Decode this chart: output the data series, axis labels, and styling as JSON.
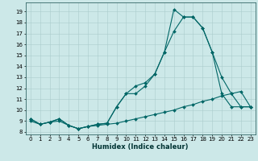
{
  "title": "",
  "xlabel": "Humidex (Indice chaleur)",
  "background_color": "#cce8e8",
  "grid_color": "#aacccc",
  "line_color": "#006666",
  "xlim": [
    -0.5,
    23.5
  ],
  "ylim": [
    7.8,
    19.8
  ],
  "yticks": [
    8,
    9,
    10,
    11,
    12,
    13,
    14,
    15,
    16,
    17,
    18,
    19
  ],
  "xticks": [
    0,
    1,
    2,
    3,
    4,
    5,
    6,
    7,
    8,
    9,
    10,
    11,
    12,
    13,
    14,
    15,
    16,
    17,
    18,
    19,
    20,
    21,
    22,
    23
  ],
  "series": [
    {
      "x": [
        0,
        1,
        2,
        3,
        4,
        5,
        6,
        7,
        8,
        9,
        10,
        11,
        12,
        13,
        14,
        15,
        16,
        17,
        18,
        19,
        20,
        21,
        22,
        23
      ],
      "y": [
        9.2,
        8.7,
        8.9,
        9.2,
        8.6,
        8.3,
        8.5,
        8.7,
        8.8,
        10.3,
        11.5,
        12.2,
        12.5,
        13.3,
        15.3,
        19.2,
        18.5,
        18.5,
        17.5,
        15.3,
        13.0,
        11.5,
        10.3,
        10.3
      ],
      "marker": "D",
      "markersize": 2.0,
      "linewidth": 0.8
    },
    {
      "x": [
        0,
        1,
        2,
        3,
        4,
        5,
        6,
        7,
        8,
        9,
        10,
        11,
        12,
        13,
        14,
        15,
        16,
        17,
        18,
        19,
        20,
        21,
        22,
        23
      ],
      "y": [
        9.2,
        8.7,
        8.9,
        9.2,
        8.6,
        8.3,
        8.5,
        8.7,
        8.8,
        10.3,
        11.5,
        11.5,
        12.2,
        13.3,
        15.3,
        17.2,
        18.5,
        18.5,
        17.5,
        15.3,
        11.5,
        10.3,
        10.3,
        10.3
      ],
      "marker": "D",
      "markersize": 2.0,
      "linewidth": 0.8
    },
    {
      "x": [
        0,
        1,
        2,
        3,
        4,
        5,
        6,
        7,
        8,
        9,
        10,
        11,
        12,
        13,
        14,
        15,
        16,
        17,
        18,
        19,
        20,
        21,
        22,
        23
      ],
      "y": [
        9.0,
        8.7,
        8.9,
        9.0,
        8.6,
        8.3,
        8.5,
        8.6,
        8.7,
        8.8,
        9.0,
        9.2,
        9.4,
        9.6,
        9.8,
        10.0,
        10.3,
        10.5,
        10.8,
        11.0,
        11.3,
        11.5,
        11.7,
        10.3
      ],
      "marker": "D",
      "markersize": 2.0,
      "linewidth": 0.8
    }
  ]
}
